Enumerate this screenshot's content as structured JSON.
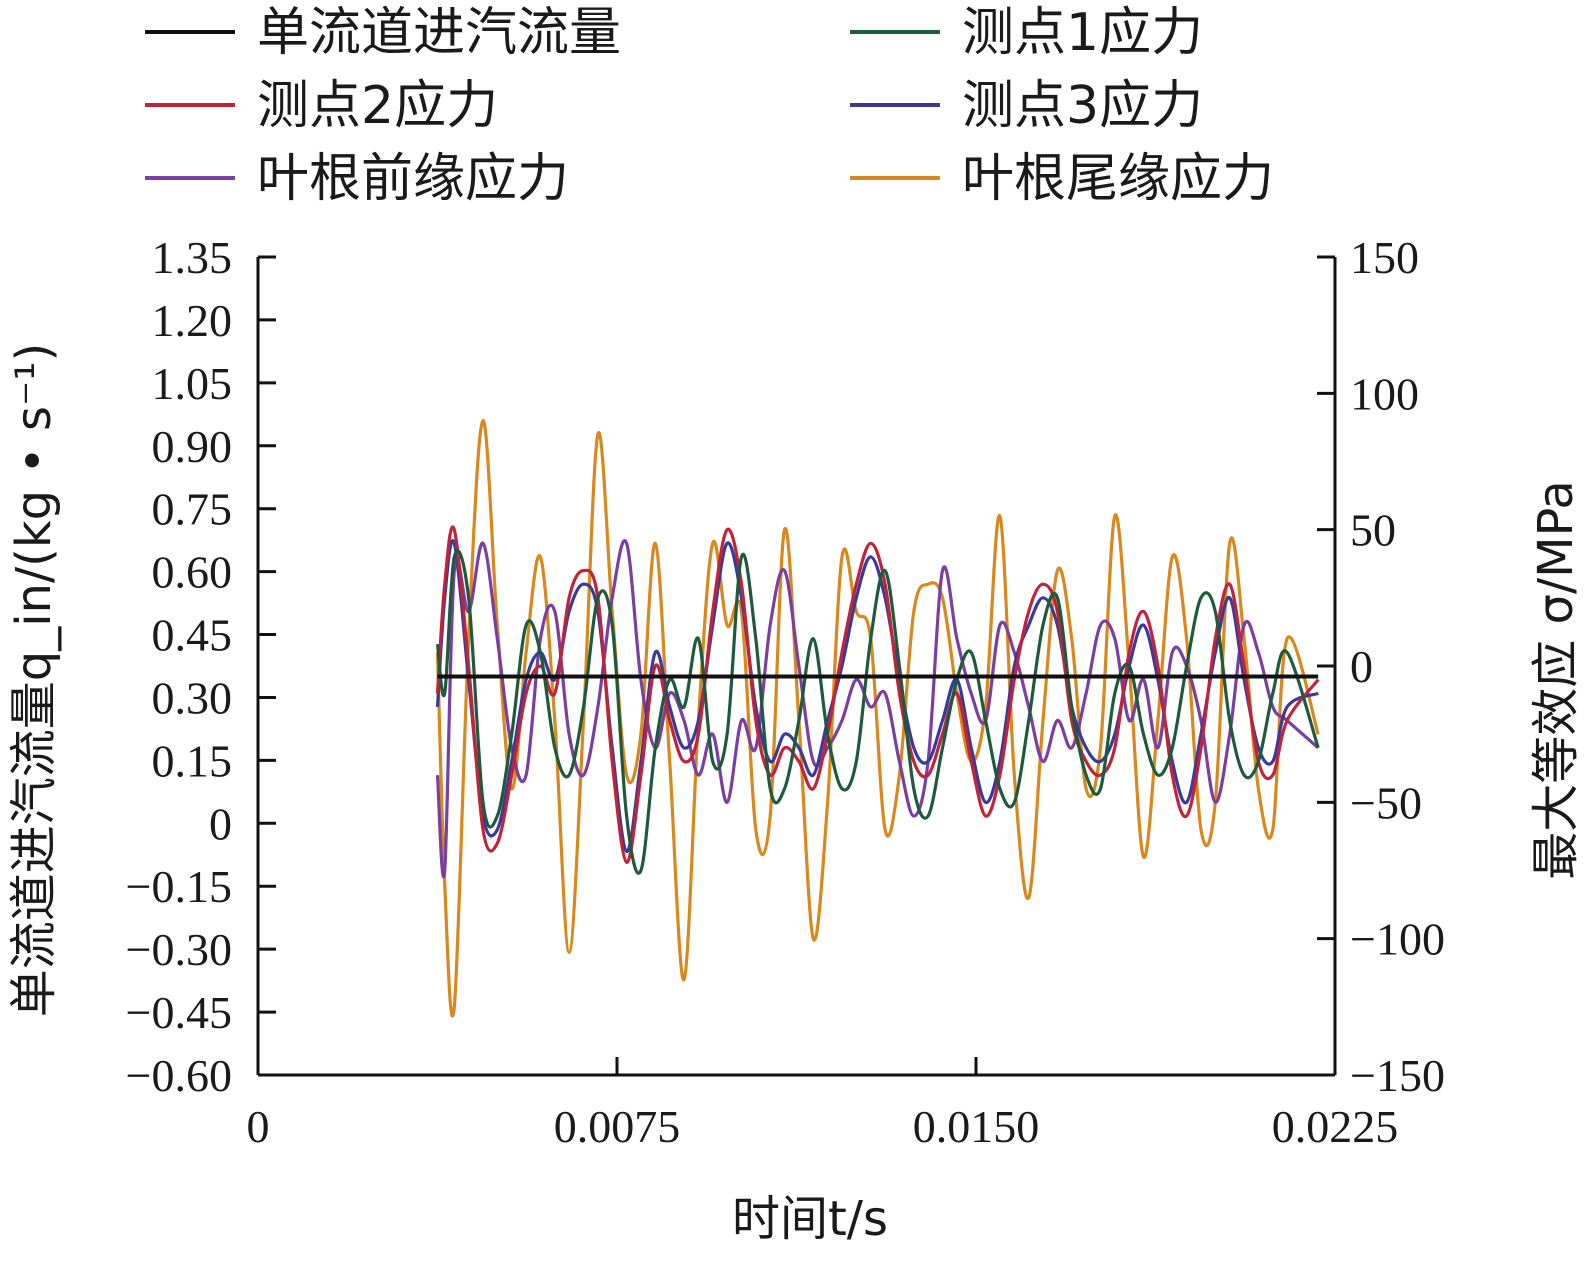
{
  "chart_data": {
    "type": "line",
    "xlabel": "时间t/s",
    "ylabel_left": "单流道进汽流量q_in/(kg • s⁻¹)",
    "ylabel_right": "最大等效应 σ/MPa",
    "x_ticks": [
      "0",
      "0.0075",
      "0.0150",
      "0.0225"
    ],
    "x_tick_values": [
      0,
      0.0075,
      0.015,
      0.0225
    ],
    "xlim": [
      0,
      0.0225
    ],
    "y_left_ticks": [
      "1.35",
      "1.20",
      "1.05",
      "0.90",
      "0.75",
      "0.60",
      "0.45",
      "0.30",
      "0.15",
      "0",
      "−0.15",
      "−0.30",
      "−0.45",
      "−0.60"
    ],
    "y_left_tick_values": [
      1.35,
      1.2,
      1.05,
      0.9,
      0.75,
      0.6,
      0.45,
      0.3,
      0.15,
      0,
      -0.15,
      -0.3,
      -0.45,
      -0.6
    ],
    "ylim_left": [
      -0.6,
      1.35
    ],
    "y_right_ticks": [
      "150",
      "100",
      "50",
      "0",
      "−50",
      "−100",
      "−150"
    ],
    "y_right_tick_values": [
      150,
      100,
      50,
      0,
      -50,
      -100,
      -150
    ],
    "ylim_right": [
      -150,
      150
    ],
    "legend_position": "top",
    "series": [
      {
        "name": "单流道进汽流量",
        "color": "#111111",
        "axis": "left",
        "x": [
          0.00375,
          0.0075,
          0.0112,
          0.015,
          0.0187,
          0.02215
        ],
        "values": [
          0.35,
          0.35,
          0.35,
          0.35,
          0.35,
          0.35
        ]
      },
      {
        "name": "测点1应力",
        "color": "#1e5a3c",
        "axis": "right",
        "x": [
          0.00375,
          0.0039,
          0.0041,
          0.0044,
          0.0047,
          0.005,
          0.0053,
          0.0056,
          0.0059,
          0.0062,
          0.0065,
          0.0068,
          0.0071,
          0.0074,
          0.0077,
          0.008,
          0.0083,
          0.0086,
          0.0089,
          0.0092,
          0.0095,
          0.0098,
          0.0101,
          0.0104,
          0.0107,
          0.011,
          0.0113,
          0.0116,
          0.0119,
          0.0122,
          0.0125,
          0.0128,
          0.0131,
          0.0134,
          0.0137,
          0.014,
          0.0143,
          0.0146,
          0.0149,
          0.0152,
          0.0155,
          0.0158,
          0.0161,
          0.0164,
          0.0167,
          0.017,
          0.0173,
          0.0176,
          0.0179,
          0.0182,
          0.0185,
          0.0188,
          0.0191,
          0.0194,
          0.0197,
          0.02,
          0.0203,
          0.0206,
          0.0209,
          0.0212,
          0.0215,
          0.02215
        ],
        "values": [
          8,
          -10,
          40,
          25,
          -50,
          -55,
          -25,
          15,
          5,
          -30,
          -40,
          -15,
          25,
          15,
          -55,
          -75,
          -30,
          -5,
          -15,
          10,
          -35,
          -25,
          40,
          10,
          -45,
          -45,
          -20,
          10,
          -25,
          -45,
          -35,
          10,
          35,
          0,
          -45,
          -55,
          -30,
          -5,
          5,
          -20,
          -45,
          -50,
          -20,
          15,
          25,
          -15,
          -40,
          -45,
          -10,
          0,
          -25,
          -40,
          -30,
          0,
          25,
          20,
          -20,
          -40,
          -35,
          -10,
          5,
          -30
        ]
      },
      {
        "name": "测点2应力",
        "color": "#c0243a",
        "axis": "right",
        "x": [
          0.00375,
          0.0039,
          0.0041,
          0.0044,
          0.0047,
          0.005,
          0.0053,
          0.0056,
          0.0059,
          0.0062,
          0.0065,
          0.0068,
          0.0071,
          0.0074,
          0.0077,
          0.008,
          0.0083,
          0.0086,
          0.0089,
          0.0092,
          0.0095,
          0.0098,
          0.0101,
          0.0104,
          0.0107,
          0.011,
          0.0113,
          0.0116,
          0.0119,
          0.0122,
          0.0125,
          0.0128,
          0.0131,
          0.0134,
          0.0137,
          0.014,
          0.0143,
          0.0146,
          0.0149,
          0.0152,
          0.0155,
          0.0158,
          0.0161,
          0.0164,
          0.0167,
          0.017,
          0.0173,
          0.0176,
          0.0179,
          0.0182,
          0.0185,
          0.0188,
          0.0191,
          0.0194,
          0.0197,
          0.02,
          0.0203,
          0.0206,
          0.0209,
          0.0212,
          0.0215,
          0.02215
        ],
        "values": [
          -10,
          30,
          50,
          0,
          -60,
          -65,
          -40,
          -10,
          0,
          -10,
          25,
          35,
          25,
          -35,
          -72,
          -40,
          0,
          -20,
          -35,
          -25,
          20,
          50,
          30,
          -20,
          -40,
          -30,
          -35,
          -45,
          -25,
          5,
          30,
          45,
          30,
          -10,
          -35,
          -40,
          -25,
          -10,
          -35,
          -55,
          -40,
          -5,
          20,
          30,
          20,
          -20,
          -35,
          -40,
          -30,
          5,
          20,
          0,
          -40,
          -55,
          -30,
          10,
          30,
          0,
          -35,
          -40,
          -20,
          -5
        ]
      },
      {
        "name": "测点3应力",
        "color": "#3a3a9a",
        "axis": "right",
        "x": [
          0.00375,
          0.0039,
          0.0041,
          0.0044,
          0.0047,
          0.005,
          0.0053,
          0.0056,
          0.0059,
          0.0062,
          0.0065,
          0.0068,
          0.0071,
          0.0074,
          0.0077,
          0.008,
          0.0083,
          0.0086,
          0.0089,
          0.0092,
          0.0095,
          0.0098,
          0.0101,
          0.0104,
          0.0107,
          0.011,
          0.0113,
          0.0116,
          0.0119,
          0.0122,
          0.0125,
          0.0128,
          0.0131,
          0.0134,
          0.0137,
          0.014,
          0.0143,
          0.0146,
          0.0149,
          0.0152,
          0.0155,
          0.0158,
          0.0161,
          0.0164,
          0.0167,
          0.017,
          0.0173,
          0.0176,
          0.0179,
          0.0182,
          0.0185,
          0.0188,
          0.0191,
          0.0194,
          0.0197,
          0.02,
          0.0203,
          0.0206,
          0.0209,
          0.0212,
          0.0215,
          0.02215
        ],
        "values": [
          -15,
          25,
          45,
          -5,
          -55,
          -60,
          -35,
          -5,
          5,
          -5,
          20,
          30,
          20,
          -30,
          -68,
          -35,
          5,
          -15,
          -30,
          -20,
          15,
          45,
          25,
          -15,
          -35,
          -25,
          -30,
          -40,
          -20,
          0,
          25,
          40,
          25,
          -5,
          -30,
          -35,
          -20,
          -5,
          -30,
          -50,
          -35,
          0,
          15,
          25,
          15,
          -15,
          -30,
          -35,
          -25,
          0,
          15,
          -5,
          -35,
          -50,
          -25,
          5,
          25,
          -5,
          -30,
          -35,
          -15,
          -10
        ]
      },
      {
        "name": "叶根前缘应力",
        "color": "#7a3fa0",
        "axis": "right",
        "x": [
          0.00375,
          0.0039,
          0.0041,
          0.0044,
          0.0047,
          0.005,
          0.0053,
          0.0056,
          0.0059,
          0.0062,
          0.0065,
          0.0068,
          0.0071,
          0.0074,
          0.0077,
          0.008,
          0.0083,
          0.0086,
          0.0089,
          0.0092,
          0.0095,
          0.0098,
          0.0101,
          0.0104,
          0.0107,
          0.011,
          0.0113,
          0.0116,
          0.0119,
          0.0122,
          0.0125,
          0.0128,
          0.0131,
          0.0134,
          0.0137,
          0.014,
          0.0143,
          0.0146,
          0.0149,
          0.0152,
          0.0155,
          0.0158,
          0.0161,
          0.0164,
          0.0167,
          0.017,
          0.0173,
          0.0176,
          0.0179,
          0.0182,
          0.0185,
          0.0188,
          0.0191,
          0.0194,
          0.0197,
          0.02,
          0.0203,
          0.0206,
          0.0209,
          0.0212,
          0.0215,
          0.02215
        ],
        "values": [
          -40,
          -75,
          35,
          20,
          45,
          10,
          -30,
          -40,
          10,
          20,
          -25,
          -40,
          -15,
          25,
          45,
          -5,
          -30,
          -10,
          -20,
          -40,
          -25,
          -50,
          -20,
          -30,
          15,
          35,
          0,
          -35,
          -30,
          -20,
          -5,
          -15,
          -10,
          -35,
          -55,
          -35,
          35,
          10,
          -10,
          -20,
          15,
          5,
          -15,
          -35,
          -20,
          -30,
          -10,
          15,
          10,
          -20,
          -5,
          -30,
          5,
          0,
          -20,
          -50,
          -25,
          15,
          5,
          -15,
          -20,
          -30
        ]
      },
      {
        "name": "叶根尾缘应力",
        "color": "#d8881c",
        "axis": "right",
        "x": [
          0.00375,
          0.0039,
          0.0041,
          0.0044,
          0.0047,
          0.005,
          0.0053,
          0.0056,
          0.0059,
          0.0062,
          0.0065,
          0.0068,
          0.0071,
          0.0074,
          0.0077,
          0.008,
          0.0083,
          0.0086,
          0.0089,
          0.0092,
          0.0095,
          0.0098,
          0.0101,
          0.0104,
          0.0107,
          0.011,
          0.0113,
          0.0116,
          0.0119,
          0.0122,
          0.0125,
          0.0128,
          0.0131,
          0.0134,
          0.0137,
          0.014,
          0.0143,
          0.0146,
          0.0149,
          0.0152,
          0.0155,
          0.0158,
          0.0161,
          0.0164,
          0.0167,
          0.017,
          0.0173,
          0.0176,
          0.0179,
          0.0182,
          0.0185,
          0.0188,
          0.0191,
          0.0194,
          0.0197,
          0.02,
          0.0203,
          0.0206,
          0.0209,
          0.0212,
          0.0215,
          0.02215
        ],
        "values": [
          5,
          -80,
          -125,
          10,
          90,
          15,
          -45,
          5,
          40,
          -20,
          -105,
          -20,
          85,
          20,
          -40,
          -25,
          45,
          -35,
          -115,
          -20,
          45,
          15,
          20,
          -60,
          -55,
          50,
          -20,
          -100,
          -50,
          40,
          20,
          10,
          -60,
          -40,
          20,
          30,
          25,
          -10,
          -35,
          -15,
          55,
          -40,
          -85,
          -20,
          35,
          10,
          -45,
          -30,
          55,
          0,
          -70,
          -20,
          40,
          10,
          -60,
          -50,
          45,
          10,
          -45,
          -60,
          10,
          -25
        ]
      }
    ]
  }
}
